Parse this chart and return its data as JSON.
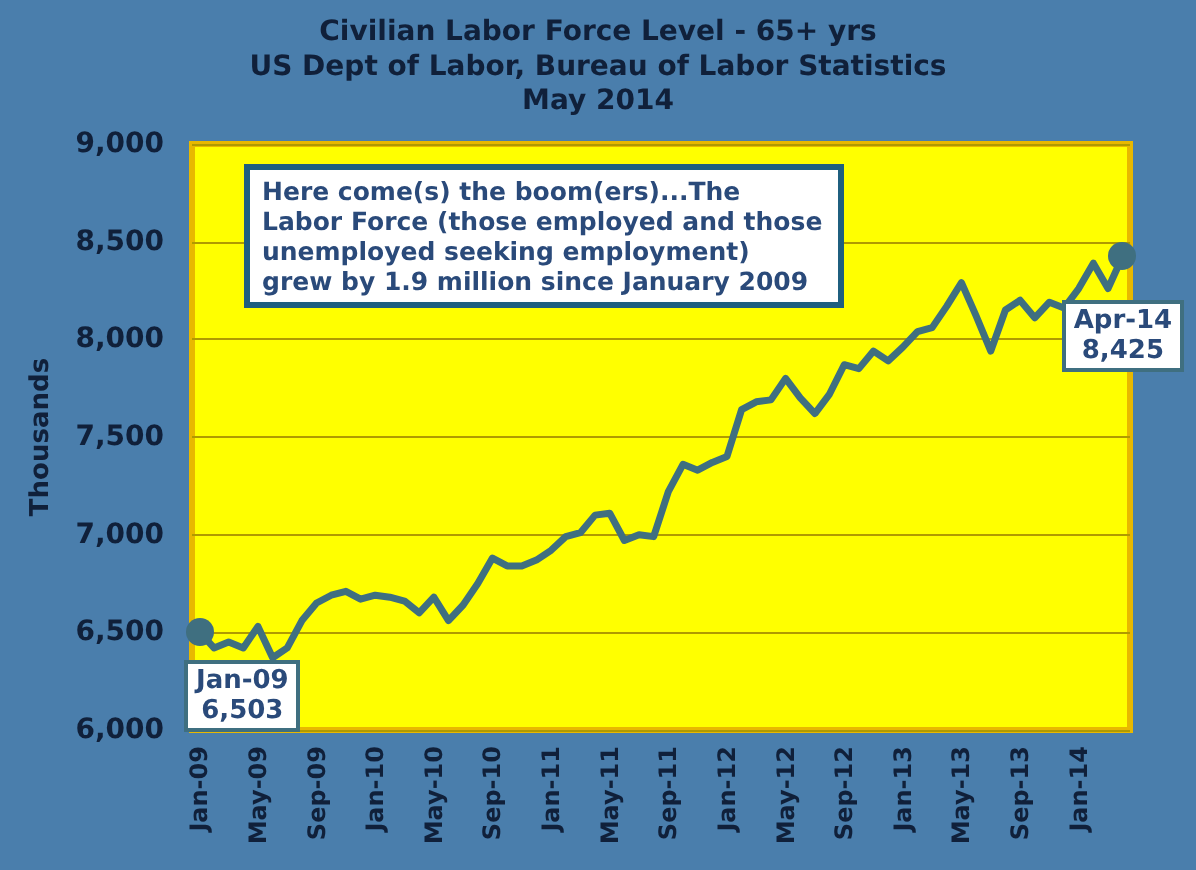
{
  "chart_data": {
    "type": "line",
    "title": "Civilian Labor Force Level - 65+ yrs",
    "subtitle": "US Dept of Labor, Bureau of Labor Statistics\nMay 2014",
    "ylabel": "Thousands",
    "categories": [
      "Jan-09",
      null,
      null,
      null,
      "May-09",
      null,
      null,
      null,
      "Sep-09",
      null,
      null,
      null,
      "Jan-10",
      null,
      null,
      null,
      "May-10",
      null,
      null,
      null,
      "Sep-10",
      null,
      null,
      null,
      "Jan-11",
      null,
      null,
      null,
      "May-11",
      null,
      null,
      null,
      "Sep-11",
      null,
      null,
      null,
      "Jan-12",
      null,
      null,
      null,
      "May-12",
      null,
      null,
      null,
      "Sep-12",
      null,
      null,
      null,
      "Jan-13",
      null,
      null,
      null,
      "May-13",
      null,
      null,
      null,
      "Sep-13",
      null,
      null,
      null,
      "Jan-14",
      null,
      null,
      null
    ],
    "series": [
      {
        "color": "#3f6f80",
        "values": [
          6503,
          6420,
          6450,
          6420,
          6530,
          6370,
          6420,
          6560,
          6650,
          6690,
          6710,
          6670,
          6690,
          6680,
          6660,
          6600,
          6680,
          6560,
          6640,
          6750,
          6880,
          6840,
          6840,
          6870,
          6920,
          6990,
          7010,
          7100,
          7110,
          6970,
          7000,
          6990,
          7220,
          7360,
          7330,
          7370,
          7400,
          7640,
          7680,
          7690,
          7800,
          7700,
          7620,
          7720,
          7870,
          7850,
          7940,
          7890,
          7960,
          8040,
          8060,
          8170,
          8290,
          8120,
          7940,
          8150,
          8200,
          8110,
          8190,
          8160,
          8260,
          8390,
          8260,
          8425
        ]
      }
    ],
    "ylim": [
      6000,
      9000
    ],
    "yticks": [
      {
        "value": 6000,
        "label": "6,000"
      },
      {
        "value": 6500,
        "label": "6,500"
      },
      {
        "value": 7000,
        "label": "7,000"
      },
      {
        "value": 7500,
        "label": "7,500"
      },
      {
        "value": 8000,
        "label": "8,000"
      },
      {
        "value": 8500,
        "label": "8,500"
      },
      {
        "value": 9000,
        "label": "9,000"
      }
    ],
    "grid": "y",
    "marker": "none",
    "line_style": "solid",
    "annotations": [
      "Here come(s) the boom(ers)...The Labor  Force (those employed and those unemployed seeking employment) grew by 1.9 million since January  2009",
      {
        "text": "Jan-09\n6,503",
        "x": "Jan-09",
        "y": 6503
      },
      {
        "text": "Apr-14\n8,425",
        "y": 8425
      }
    ]
  }
}
